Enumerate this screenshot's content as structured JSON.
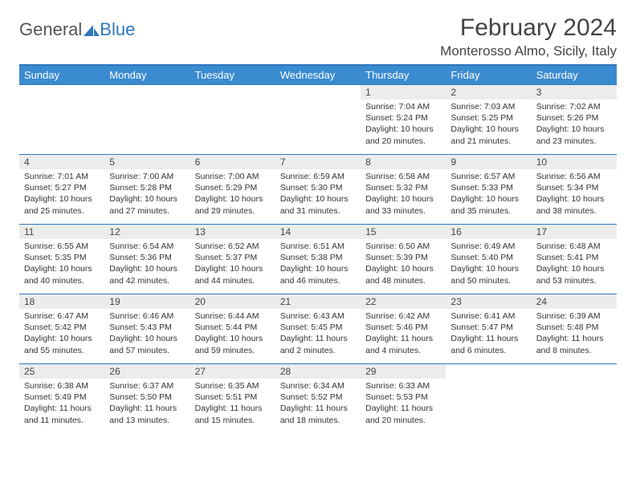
{
  "brand": {
    "word1": "General",
    "word2": "Blue",
    "accent_color": "#2f77bb"
  },
  "title": "February 2024",
  "location": "Monterosso Almo, Sicily, Italy",
  "header_bg": "#3b8bd0",
  "daynum_bg": "#ececec",
  "weekdays": [
    "Sunday",
    "Monday",
    "Tuesday",
    "Wednesday",
    "Thursday",
    "Friday",
    "Saturday"
  ],
  "weeks": [
    [
      {
        "empty": true
      },
      {
        "empty": true
      },
      {
        "empty": true
      },
      {
        "empty": true
      },
      {
        "day": "1",
        "sunrise": "Sunrise: 7:04 AM",
        "sunset": "Sunset: 5:24 PM",
        "daylight": "Daylight: 10 hours and 20 minutes."
      },
      {
        "day": "2",
        "sunrise": "Sunrise: 7:03 AM",
        "sunset": "Sunset: 5:25 PM",
        "daylight": "Daylight: 10 hours and 21 minutes."
      },
      {
        "day": "3",
        "sunrise": "Sunrise: 7:02 AM",
        "sunset": "Sunset: 5:26 PM",
        "daylight": "Daylight: 10 hours and 23 minutes."
      }
    ],
    [
      {
        "day": "4",
        "sunrise": "Sunrise: 7:01 AM",
        "sunset": "Sunset: 5:27 PM",
        "daylight": "Daylight: 10 hours and 25 minutes."
      },
      {
        "day": "5",
        "sunrise": "Sunrise: 7:00 AM",
        "sunset": "Sunset: 5:28 PM",
        "daylight": "Daylight: 10 hours and 27 minutes."
      },
      {
        "day": "6",
        "sunrise": "Sunrise: 7:00 AM",
        "sunset": "Sunset: 5:29 PM",
        "daylight": "Daylight: 10 hours and 29 minutes."
      },
      {
        "day": "7",
        "sunrise": "Sunrise: 6:59 AM",
        "sunset": "Sunset: 5:30 PM",
        "daylight": "Daylight: 10 hours and 31 minutes."
      },
      {
        "day": "8",
        "sunrise": "Sunrise: 6:58 AM",
        "sunset": "Sunset: 5:32 PM",
        "daylight": "Daylight: 10 hours and 33 minutes."
      },
      {
        "day": "9",
        "sunrise": "Sunrise: 6:57 AM",
        "sunset": "Sunset: 5:33 PM",
        "daylight": "Daylight: 10 hours and 35 minutes."
      },
      {
        "day": "10",
        "sunrise": "Sunrise: 6:56 AM",
        "sunset": "Sunset: 5:34 PM",
        "daylight": "Daylight: 10 hours and 38 minutes."
      }
    ],
    [
      {
        "day": "11",
        "sunrise": "Sunrise: 6:55 AM",
        "sunset": "Sunset: 5:35 PM",
        "daylight": "Daylight: 10 hours and 40 minutes."
      },
      {
        "day": "12",
        "sunrise": "Sunrise: 6:54 AM",
        "sunset": "Sunset: 5:36 PM",
        "daylight": "Daylight: 10 hours and 42 minutes."
      },
      {
        "day": "13",
        "sunrise": "Sunrise: 6:52 AM",
        "sunset": "Sunset: 5:37 PM",
        "daylight": "Daylight: 10 hours and 44 minutes."
      },
      {
        "day": "14",
        "sunrise": "Sunrise: 6:51 AM",
        "sunset": "Sunset: 5:38 PM",
        "daylight": "Daylight: 10 hours and 46 minutes."
      },
      {
        "day": "15",
        "sunrise": "Sunrise: 6:50 AM",
        "sunset": "Sunset: 5:39 PM",
        "daylight": "Daylight: 10 hours and 48 minutes."
      },
      {
        "day": "16",
        "sunrise": "Sunrise: 6:49 AM",
        "sunset": "Sunset: 5:40 PM",
        "daylight": "Daylight: 10 hours and 50 minutes."
      },
      {
        "day": "17",
        "sunrise": "Sunrise: 6:48 AM",
        "sunset": "Sunset: 5:41 PM",
        "daylight": "Daylight: 10 hours and 53 minutes."
      }
    ],
    [
      {
        "day": "18",
        "sunrise": "Sunrise: 6:47 AM",
        "sunset": "Sunset: 5:42 PM",
        "daylight": "Daylight: 10 hours and 55 minutes."
      },
      {
        "day": "19",
        "sunrise": "Sunrise: 6:46 AM",
        "sunset": "Sunset: 5:43 PM",
        "daylight": "Daylight: 10 hours and 57 minutes."
      },
      {
        "day": "20",
        "sunrise": "Sunrise: 6:44 AM",
        "sunset": "Sunset: 5:44 PM",
        "daylight": "Daylight: 10 hours and 59 minutes."
      },
      {
        "day": "21",
        "sunrise": "Sunrise: 6:43 AM",
        "sunset": "Sunset: 5:45 PM",
        "daylight": "Daylight: 11 hours and 2 minutes."
      },
      {
        "day": "22",
        "sunrise": "Sunrise: 6:42 AM",
        "sunset": "Sunset: 5:46 PM",
        "daylight": "Daylight: 11 hours and 4 minutes."
      },
      {
        "day": "23",
        "sunrise": "Sunrise: 6:41 AM",
        "sunset": "Sunset: 5:47 PM",
        "daylight": "Daylight: 11 hours and 6 minutes."
      },
      {
        "day": "24",
        "sunrise": "Sunrise: 6:39 AM",
        "sunset": "Sunset: 5:48 PM",
        "daylight": "Daylight: 11 hours and 8 minutes."
      }
    ],
    [
      {
        "day": "25",
        "sunrise": "Sunrise: 6:38 AM",
        "sunset": "Sunset: 5:49 PM",
        "daylight": "Daylight: 11 hours and 11 minutes."
      },
      {
        "day": "26",
        "sunrise": "Sunrise: 6:37 AM",
        "sunset": "Sunset: 5:50 PM",
        "daylight": "Daylight: 11 hours and 13 minutes."
      },
      {
        "day": "27",
        "sunrise": "Sunrise: 6:35 AM",
        "sunset": "Sunset: 5:51 PM",
        "daylight": "Daylight: 11 hours and 15 minutes."
      },
      {
        "day": "28",
        "sunrise": "Sunrise: 6:34 AM",
        "sunset": "Sunset: 5:52 PM",
        "daylight": "Daylight: 11 hours and 18 minutes."
      },
      {
        "day": "29",
        "sunrise": "Sunrise: 6:33 AM",
        "sunset": "Sunset: 5:53 PM",
        "daylight": "Daylight: 11 hours and 20 minutes."
      },
      {
        "empty": true
      },
      {
        "empty": true
      }
    ]
  ]
}
